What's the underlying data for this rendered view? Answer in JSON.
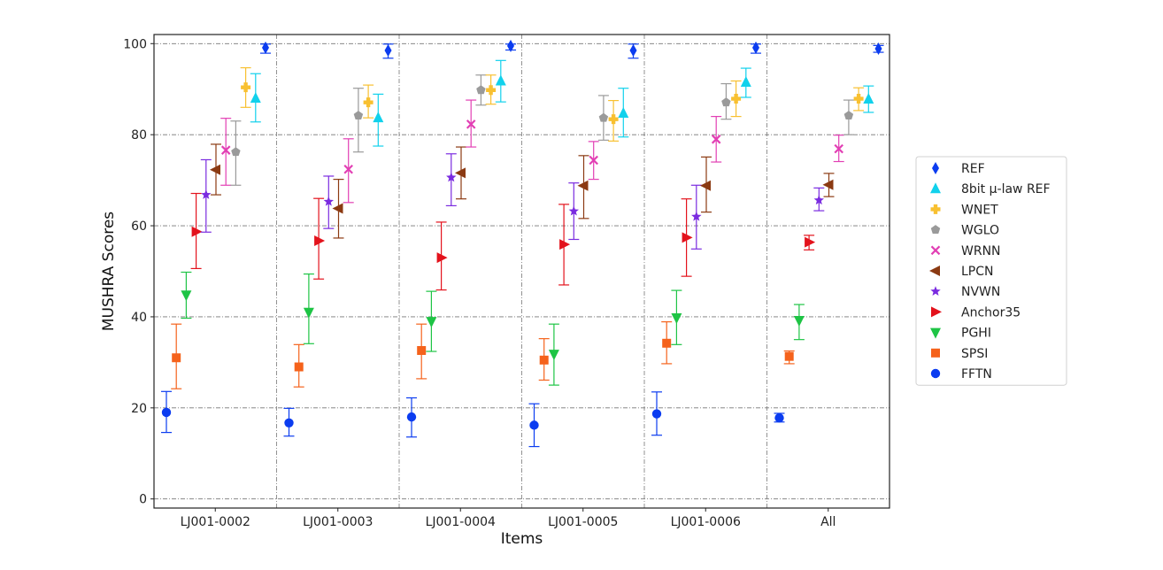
{
  "chart_data": {
    "type": "errorbar-scatter",
    "xlabel": "Items",
    "ylabel": "MUSHRA Scores",
    "ylim": [
      -2,
      102
    ],
    "yticks": [
      0,
      20,
      40,
      60,
      80,
      100
    ],
    "grid": "dash-dot",
    "legend_position": "right",
    "categories": [
      "LJ001-0002",
      "LJ001-0003",
      "LJ001-0004",
      "LJ001-0005",
      "LJ001-0006",
      "All"
    ],
    "series": [
      {
        "name": "FFTN",
        "color": "#0b3cf0",
        "marker": "circle",
        "values": [
          19.0,
          16.7,
          18.0,
          16.2,
          18.7,
          17.8
        ],
        "lower": [
          14.6,
          13.8,
          13.6,
          11.5,
          14.0,
          16.9
        ],
        "upper": [
          23.6,
          19.9,
          22.2,
          20.9,
          23.5,
          18.8
        ]
      },
      {
        "name": "SPSI",
        "color": "#f5621b",
        "marker": "square",
        "values": [
          31.0,
          29.0,
          32.6,
          30.5,
          34.2,
          31.3
        ],
        "lower": [
          24.2,
          24.6,
          26.4,
          26.1,
          29.7,
          29.7
        ],
        "upper": [
          38.4,
          33.9,
          38.4,
          35.2,
          38.9,
          32.5
        ]
      },
      {
        "name": "PGHI",
        "color": "#1ec445",
        "marker": "triangle-down",
        "values": [
          44.8,
          41.0,
          39.0,
          31.8,
          39.8,
          39.2
        ],
        "lower": [
          39.7,
          34.1,
          32.4,
          25.0,
          33.9,
          35.0
        ],
        "upper": [
          49.8,
          49.4,
          45.6,
          38.4,
          45.8,
          42.7
        ]
      },
      {
        "name": "Anchor35",
        "color": "#e3121c",
        "marker": "triangle-right",
        "values": [
          58.7,
          56.7,
          53.0,
          55.9,
          57.4,
          56.4
        ],
        "lower": [
          50.6,
          48.3,
          45.9,
          47.0,
          48.9,
          54.7
        ],
        "upper": [
          67.1,
          66.0,
          60.8,
          64.7,
          65.9,
          57.9
        ]
      },
      {
        "name": "NVWN",
        "color": "#7a2be0",
        "marker": "star",
        "values": [
          66.8,
          65.3,
          70.6,
          63.2,
          62.0,
          65.6
        ],
        "lower": [
          58.6,
          59.4,
          64.4,
          57.0,
          54.9,
          63.3
        ],
        "upper": [
          74.5,
          70.9,
          75.8,
          69.4,
          68.9,
          68.3
        ]
      },
      {
        "name": "LPCN",
        "color": "#8b3a12",
        "marker": "triangle-left",
        "values": [
          72.3,
          63.8,
          71.6,
          68.8,
          68.8,
          69.0
        ],
        "lower": [
          66.8,
          57.3,
          65.9,
          61.6,
          63.0,
          66.4
        ],
        "upper": [
          77.9,
          70.2,
          77.3,
          75.4,
          75.1,
          71.5
        ]
      },
      {
        "name": "WRNN",
        "color": "#e23fb4",
        "marker": "x",
        "values": [
          76.6,
          72.4,
          82.3,
          74.4,
          79.0,
          76.9
        ],
        "lower": [
          68.9,
          65.1,
          77.3,
          70.2,
          74.0,
          74.1
        ],
        "upper": [
          83.6,
          79.1,
          87.6,
          78.5,
          84.0,
          79.9
        ]
      },
      {
        "name": "WGLO",
        "color": "#9a9a9a",
        "marker": "pentagon",
        "values": [
          76.2,
          84.2,
          89.8,
          83.7,
          87.1,
          84.2
        ],
        "lower": [
          68.9,
          76.2,
          86.5,
          78.8,
          83.4,
          80.0
        ],
        "upper": [
          83.0,
          90.2,
          93.1,
          88.6,
          91.2,
          87.6
        ]
      },
      {
        "name": "WNET",
        "color": "#f8c030",
        "marker": "plus-filled",
        "values": [
          90.4,
          87.1,
          89.8,
          83.4,
          87.9,
          87.9
        ],
        "lower": [
          86.0,
          83.7,
          86.7,
          78.6,
          84.0,
          85.3
        ],
        "upper": [
          94.7,
          90.9,
          93.1,
          87.5,
          91.8,
          90.3
        ]
      },
      {
        "name": "8bit μ-law REF",
        "color": "#11d1ec",
        "marker": "triangle-up",
        "values": [
          88.0,
          83.7,
          91.8,
          84.7,
          91.5,
          87.8
        ],
        "lower": [
          82.8,
          77.5,
          87.2,
          79.5,
          88.2,
          84.9
        ],
        "upper": [
          93.4,
          88.9,
          96.3,
          90.2,
          94.6,
          90.7
        ]
      },
      {
        "name": "REF",
        "color": "#0b3cf0",
        "marker": "thin-diamond",
        "values": [
          99.1,
          98.5,
          99.5,
          98.5,
          99.1,
          98.9
        ],
        "lower": [
          97.9,
          96.8,
          98.6,
          96.8,
          97.9,
          98.1
        ],
        "upper": [
          99.9,
          99.9,
          99.9,
          99.9,
          99.9,
          99.6
        ]
      }
    ]
  }
}
